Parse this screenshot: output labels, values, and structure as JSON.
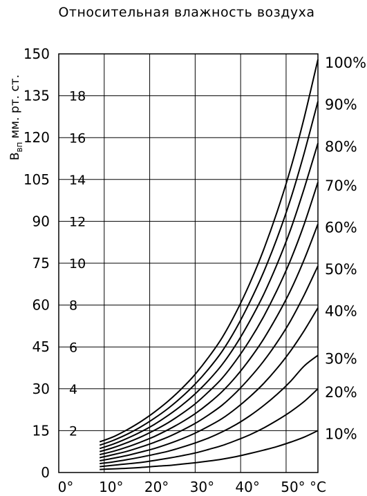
{
  "chart_data": {
    "type": "line",
    "title": "Относительная влажность воздуха",
    "ylabel": "B",
    "ylabel_sub": "вп",
    "ylabel_unit": "мм. рт. ст.",
    "x_unit": "°C",
    "xlim": [
      0,
      57
    ],
    "ylim": [
      0,
      150
    ],
    "x_ticks": [
      {
        "value": 0,
        "label": "0°"
      },
      {
        "value": 10,
        "label": "10°"
      },
      {
        "value": 20,
        "label": "20°"
      },
      {
        "value": 30,
        "label": "30°"
      },
      {
        "value": 40,
        "label": "40°"
      },
      {
        "value": 50,
        "label": "50°"
      }
    ],
    "y_ticks": [
      0,
      15,
      30,
      45,
      60,
      75,
      90,
      105,
      120,
      135,
      150
    ],
    "minor_labels": [
      {
        "value": 13.5,
        "label": "2"
      },
      {
        "value": 28.5,
        "label": "4"
      },
      {
        "value": 43.5,
        "label": "6"
      },
      {
        "value": 58.5,
        "label": "8"
      },
      {
        "value": 73.5,
        "label": "10"
      },
      {
        "value": 88.5,
        "label": "12"
      },
      {
        "value": 103.5,
        "label": "14"
      },
      {
        "value": 118.5,
        "label": "16"
      },
      {
        "value": 133.5,
        "label": "18"
      }
    ],
    "x": [
      9,
      12,
      15,
      18,
      21,
      24,
      27,
      30,
      33,
      36,
      39,
      42,
      45,
      48,
      51,
      54,
      57
    ],
    "series": [
      {
        "name": "100%",
        "values": [
          11,
          12.8,
          15.3,
          18.2,
          21.6,
          25.5,
          30,
          35.2,
          41.4,
          48.5,
          57.4,
          67.7,
          79.6,
          93.3,
          108.9,
          127.3,
          148
        ]
      },
      {
        "name": "90%",
        "values": [
          9.8,
          11.5,
          13.7,
          16.3,
          19.4,
          22.9,
          27,
          31.7,
          37.2,
          43.6,
          51.6,
          61,
          71.6,
          83.9,
          98,
          114.6,
          133
        ]
      },
      {
        "name": "80%",
        "values": [
          8.6,
          10.2,
          12.2,
          14.5,
          17.2,
          20.4,
          24,
          28.2,
          33.1,
          38.8,
          45.9,
          54.2,
          63.6,
          74.6,
          87.1,
          101.9,
          118
        ]
      },
      {
        "name": "70%",
        "values": [
          7.5,
          8.9,
          10.7,
          12.7,
          15.1,
          17.8,
          21,
          24.6,
          29,
          33.9,
          40.2,
          47.4,
          55.7,
          65.3,
          76.2,
          89.1,
          104
        ]
      },
      {
        "name": "60%",
        "values": [
          6.4,
          7.6,
          9.1,
          10.9,
          12.9,
          15.3,
          18,
          21.1,
          24.8,
          29.1,
          34.4,
          40.6,
          47.7,
          56,
          65.3,
          76.4,
          89
        ]
      },
      {
        "name": "50%",
        "values": [
          5.3,
          6.4,
          7.6,
          9.1,
          10.8,
          12.7,
          15,
          17.6,
          20.7,
          24.2,
          28.7,
          33.9,
          39.8,
          46.6,
          54.4,
          63.7,
          74
        ]
      },
      {
        "name": "40%",
        "values": [
          4.2,
          5.1,
          6.1,
          7.3,
          8.6,
          10.2,
          12,
          14.1,
          16.6,
          19.4,
          23,
          27.1,
          31.8,
          37.3,
          43.6,
          50.9,
          59
        ]
      },
      {
        "name": "30%",
        "values": [
          3.2,
          3.8,
          4.6,
          5.5,
          6.5,
          7.6,
          9,
          10.6,
          12.4,
          14.6,
          17.2,
          20.3,
          23.9,
          28,
          32.7,
          38.2,
          42
        ]
      },
      {
        "name": "20%",
        "values": [
          2.1,
          2.6,
          3.1,
          3.6,
          4.3,
          5.1,
          6,
          7,
          8.3,
          9.7,
          11.5,
          13.5,
          15.9,
          18.7,
          21.8,
          25.5,
          30
        ]
      },
      {
        "name": "10%",
        "values": [
          1.1,
          1.3,
          1.5,
          1.8,
          2.2,
          2.5,
          3,
          3.5,
          4.1,
          4.8,
          5.7,
          6.8,
          8,
          9.3,
          10.9,
          12.7,
          15
        ]
      }
    ]
  }
}
